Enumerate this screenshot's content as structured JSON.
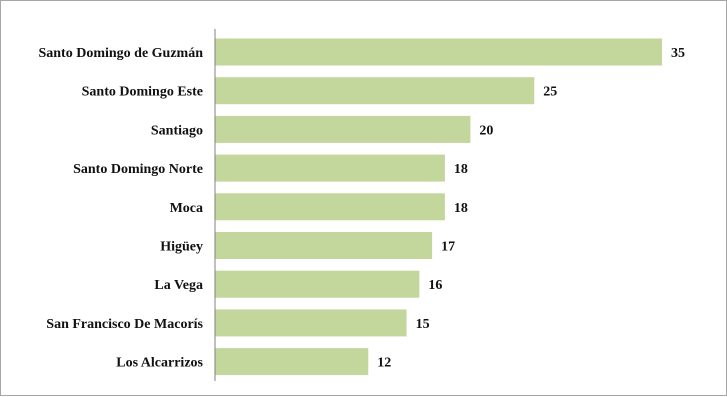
{
  "chart_data": {
    "type": "bar",
    "orientation": "horizontal",
    "title": "",
    "xlabel": "",
    "ylabel": "",
    "categories": [
      "Santo Domingo de Guzmán",
      "Santo Domingo Este",
      "Santiago",
      "Santo Domingo Norte",
      "Moca",
      "Higüey",
      "La Vega",
      "San Francisco De Macorís",
      "Los Alcarrizos"
    ],
    "values": [
      35,
      25,
      20,
      18,
      18,
      17,
      16,
      15,
      12
    ],
    "xlim": [
      0,
      35
    ],
    "grid": false,
    "legend": "none",
    "data_labels": true,
    "colors": {
      "bar": "#c3d69b",
      "axis": "#808080",
      "frame": "#a6a6a6",
      "text": "#111111"
    }
  }
}
